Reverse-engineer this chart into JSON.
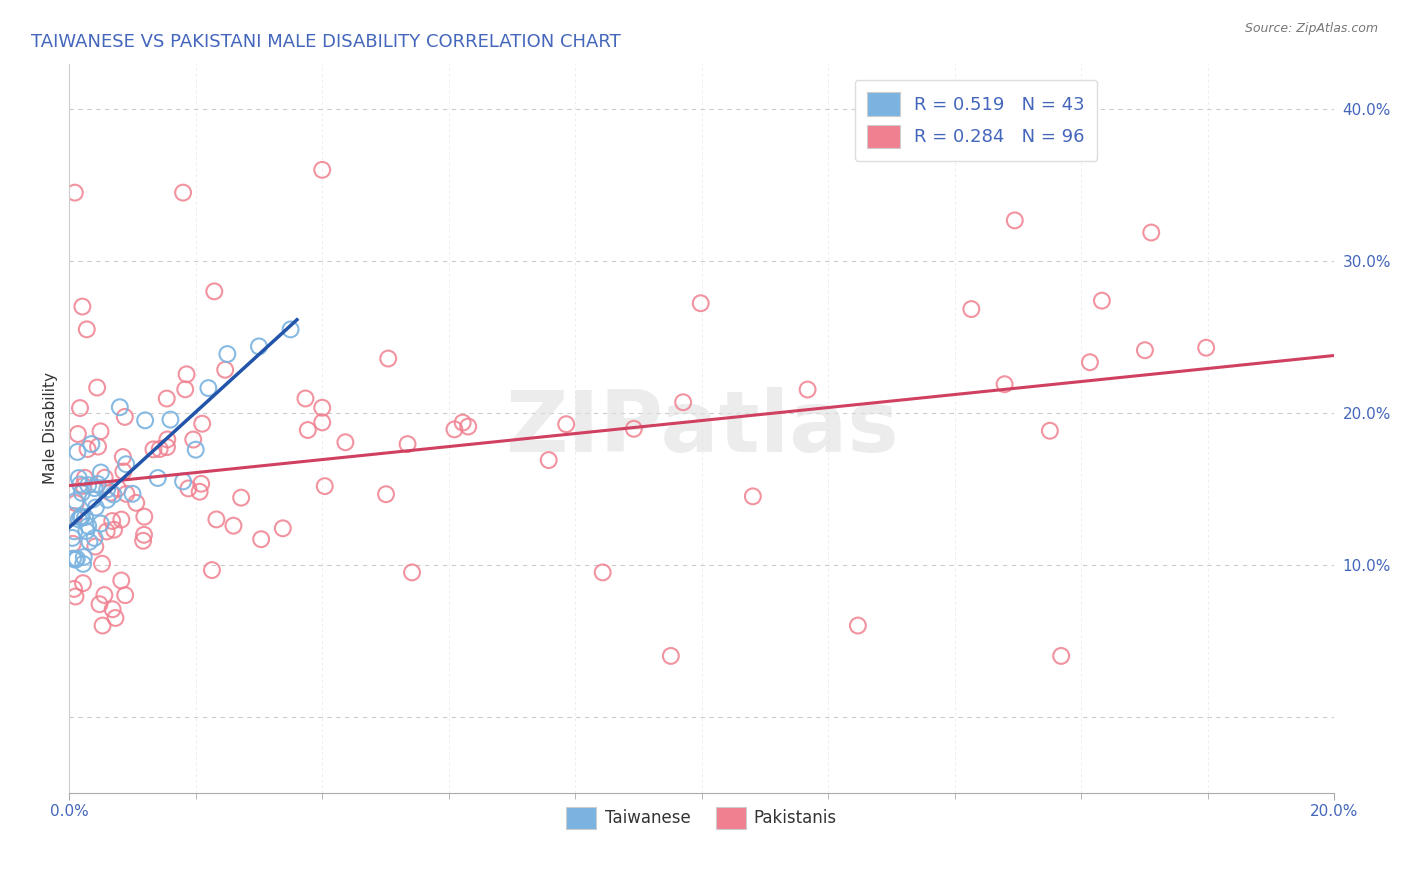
{
  "title": "TAIWANESE VS PAKISTANI MALE DISABILITY CORRELATION CHART",
  "source": "Source: ZipAtlas.com",
  "ylabel": "Male Disability",
  "xlim": [
    0.0,
    0.2
  ],
  "ylim": [
    -0.05,
    0.43
  ],
  "yticks": [
    0.0,
    0.1,
    0.2,
    0.3,
    0.4
  ],
  "ytick_labels": [
    "",
    "10.0%",
    "20.0%",
    "30.0%",
    "40.0%"
  ],
  "taiwanese_color": "#7ab3e0",
  "pakistani_color": "#f08090",
  "trend_taiwanese_color": "#2255aa",
  "trend_pakistani_color": "#d04060",
  "dash_color": "#aaaacc",
  "background_color": "#ffffff",
  "grid_color": "#cccccc",
  "title_color": "#4466bb",
  "tick_color": "#4466bb",
  "ylabel_color": "#333333"
}
